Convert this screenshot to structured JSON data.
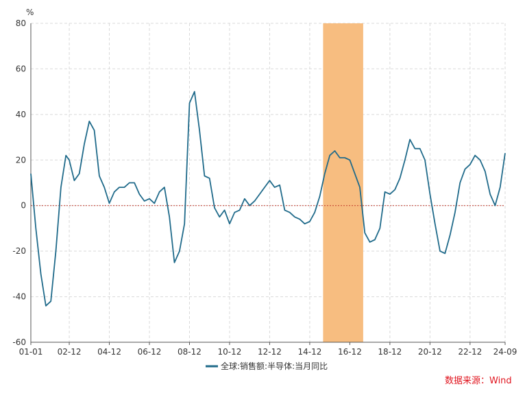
{
  "chart_data": {
    "type": "line",
    "unit_label": "%",
    "ylim": [
      -60,
      80
    ],
    "yticks": [
      -60,
      -40,
      -20,
      0,
      20,
      40,
      60,
      80
    ],
    "xlim": [
      "2001-01",
      "2024-09"
    ],
    "xtick_labels": [
      "01-01",
      "02-12",
      "04-12",
      "06-12",
      "08-12",
      "10-12",
      "12-12",
      "14-12",
      "16-12",
      "18-12",
      "20-12",
      "22-12",
      "24-09"
    ],
    "grid": true,
    "zero_line": true,
    "legend_position": "bottom",
    "shaded_region": {
      "start": "2015-08",
      "end": "2017-08",
      "color": "#f7bd80"
    },
    "source": "数据来源：Wind",
    "colors": {
      "series": "#1f6a8a",
      "zero_line": "#c0392b",
      "grid": "#d9d9d9"
    },
    "series": [
      {
        "name": "全球:销售额:半导体:当月同比",
        "x": [
          "2001-01",
          "2001-04",
          "2001-07",
          "2001-10",
          "2002-01",
          "2002-04",
          "2002-07",
          "2002-10",
          "2002-12",
          "2003-03",
          "2003-06",
          "2003-09",
          "2003-12",
          "2004-03",
          "2004-06",
          "2004-09",
          "2004-12",
          "2005-03",
          "2005-06",
          "2005-09",
          "2005-12",
          "2006-03",
          "2006-06",
          "2006-09",
          "2006-12",
          "2007-03",
          "2007-06",
          "2007-09",
          "2007-12",
          "2008-03",
          "2008-06",
          "2008-09",
          "2008-12",
          "2009-03",
          "2009-06",
          "2009-09",
          "2009-12",
          "2010-03",
          "2010-06",
          "2010-09",
          "2010-12",
          "2011-03",
          "2011-06",
          "2011-09",
          "2011-12",
          "2012-03",
          "2012-06",
          "2012-09",
          "2012-12",
          "2013-03",
          "2013-06",
          "2013-09",
          "2013-12",
          "2014-03",
          "2014-06",
          "2014-09",
          "2014-12",
          "2015-03",
          "2015-06",
          "2015-09",
          "2015-12",
          "2016-03",
          "2016-06",
          "2016-09",
          "2016-12",
          "2017-03",
          "2017-06",
          "2017-09",
          "2017-12",
          "2018-03",
          "2018-06",
          "2018-09",
          "2018-12",
          "2019-03",
          "2019-06",
          "2019-09",
          "2019-12",
          "2020-03",
          "2020-06",
          "2020-09",
          "2020-12",
          "2021-03",
          "2021-06",
          "2021-09",
          "2021-12",
          "2022-03",
          "2022-06",
          "2022-09",
          "2022-12",
          "2023-03",
          "2023-06",
          "2023-09",
          "2023-12",
          "2024-03",
          "2024-06",
          "2024-09"
        ],
        "values": [
          14,
          -10,
          -30,
          -44,
          -42,
          -20,
          8,
          22,
          20,
          11,
          14,
          27,
          37,
          33,
          13,
          8,
          1,
          6,
          8,
          8,
          10,
          10,
          5,
          2,
          3,
          1,
          6,
          8,
          -5,
          -25,
          -20,
          -8,
          45,
          50,
          33,
          13,
          12,
          -1,
          -5,
          -2,
          -8,
          -3,
          -2,
          3,
          0,
          2,
          5,
          8,
          11,
          8,
          9,
          -2,
          -3,
          -5,
          -6,
          -8,
          -7,
          -3,
          4,
          14,
          22,
          24,
          21,
          21,
          20,
          14,
          8,
          -12,
          -16,
          -15,
          -10,
          6,
          5,
          7,
          12,
          20,
          29,
          25,
          25,
          20,
          5,
          -8,
          -20,
          -21,
          -13,
          -3,
          10,
          16,
          18,
          22,
          20,
          15,
          5,
          0,
          8,
          23
        ]
      }
    ]
  }
}
